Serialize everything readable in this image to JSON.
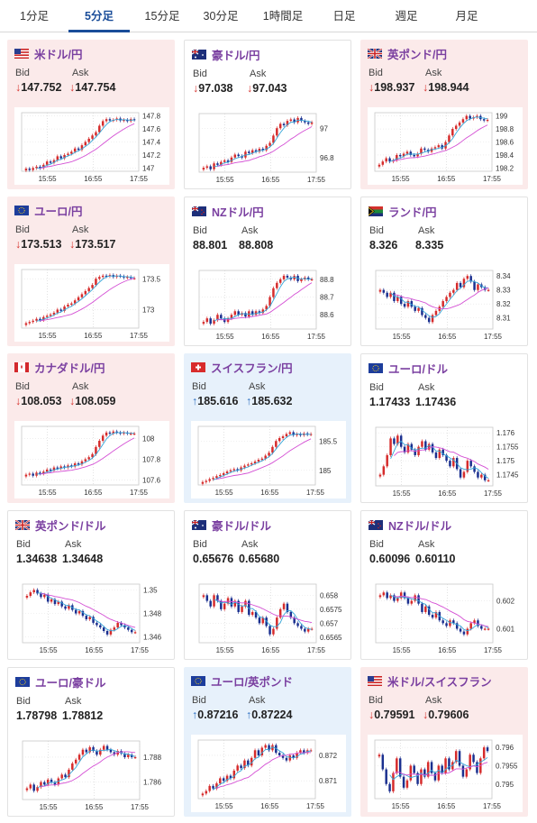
{
  "tabs": [
    {
      "label": "1分足",
      "active": false
    },
    {
      "label": "5分足",
      "active": true
    },
    {
      "label": "15分足",
      "active": false
    },
    {
      "label": "30分足",
      "active": false
    },
    {
      "label": "1時間足",
      "active": false
    },
    {
      "label": "日足",
      "active": false
    },
    {
      "label": "週足",
      "active": false
    },
    {
      "label": "月足",
      "active": false
    }
  ],
  "colors": {
    "up_candle": "#d62b2b",
    "down_candle": "#1a2f8f",
    "ma_short": "#34a6d9",
    "ma_long": "#d44fd4",
    "arrow_down": "#d6332e",
    "arrow_up": "#2b6fc2",
    "pair_name": "#7a3fa0"
  },
  "labels": {
    "bid": "Bid",
    "ask": "Ask"
  },
  "pairs": [
    {
      "name": "米ドル/円",
      "flag": "us-jp-flag",
      "bg": "pink",
      "bid": "147.752",
      "ask": "147.754",
      "direction": "down",
      "chart_data": {
        "type": "candlestick",
        "x_ticks": [
          "15:55",
          "16:55",
          "17:55"
        ],
        "y_ticks": [
          "147.8",
          "147.6",
          "147.4",
          "147.2",
          "147"
        ],
        "ylim": [
          146.95,
          147.85
        ],
        "close": [
          146.99,
          146.97,
          147.0,
          147.02,
          147.0,
          147.05,
          147.1,
          147.08,
          147.12,
          147.18,
          147.15,
          147.2,
          147.22,
          147.25,
          147.3,
          147.28,
          147.35,
          147.4,
          147.45,
          147.5,
          147.55,
          147.65,
          147.72,
          147.75,
          147.73,
          147.74,
          147.76,
          147.73,
          147.74,
          147.72,
          147.75,
          147.74
        ]
      }
    },
    {
      "name": "豪ドル/円",
      "flag": "au-jp-flag",
      "bg": "white",
      "bid": "97.038",
      "ask": "97.043",
      "direction": "down",
      "chart_data": {
        "type": "candlestick",
        "x_ticks": [
          "15:55",
          "16:55",
          "17:55"
        ],
        "y_ticks": [
          "97",
          "96.8"
        ],
        "ylim": [
          96.7,
          97.1
        ],
        "close": [
          96.73,
          96.74,
          96.72,
          96.76,
          96.75,
          96.77,
          96.78,
          96.77,
          96.8,
          96.82,
          96.81,
          96.8,
          96.84,
          96.83,
          96.85,
          96.84,
          96.86,
          96.85,
          96.88,
          96.9,
          96.95,
          97.0,
          97.03,
          97.02,
          97.05,
          97.06,
          97.04,
          97.07,
          97.05,
          97.04,
          97.03,
          97.04
        ]
      }
    },
    {
      "name": "英ポンド/円",
      "flag": "uk-jp-flag",
      "bg": "pink",
      "bid": "198.937",
      "ask": "198.944",
      "direction": "down",
      "chart_data": {
        "type": "candlestick",
        "x_ticks": [
          "15:55",
          "16:55",
          "17:55"
        ],
        "y_ticks": [
          "199",
          "198.8",
          "198.6",
          "198.4",
          "198.2"
        ],
        "ylim": [
          198.15,
          199.05
        ],
        "close": [
          198.25,
          198.3,
          198.35,
          198.3,
          198.32,
          198.4,
          198.38,
          198.42,
          198.45,
          198.4,
          198.38,
          198.42,
          198.5,
          198.48,
          198.45,
          198.5,
          198.52,
          198.55,
          198.5,
          198.6,
          198.7,
          198.8,
          198.85,
          198.9,
          198.95,
          199.0,
          198.96,
          198.98,
          199.0,
          198.95,
          198.93,
          198.94
        ]
      }
    },
    {
      "name": "ユーロ/円",
      "flag": "eu-jp-flag",
      "bg": "pink",
      "bid": "173.513",
      "ask": "173.517",
      "direction": "down",
      "chart_data": {
        "type": "candlestick",
        "x_ticks": [
          "15:55",
          "16:55",
          "17:55"
        ],
        "y_ticks": [
          "173.5",
          "173"
        ],
        "ylim": [
          172.7,
          173.65
        ],
        "close": [
          172.78,
          172.8,
          172.82,
          172.85,
          172.83,
          172.88,
          172.9,
          172.92,
          172.95,
          173.0,
          172.98,
          173.05,
          173.08,
          173.1,
          173.15,
          173.2,
          173.25,
          173.3,
          173.35,
          173.4,
          173.5,
          173.53,
          173.55,
          173.54,
          173.56,
          173.53,
          173.55,
          173.54,
          173.52,
          173.53,
          173.51,
          173.51
        ]
      }
    },
    {
      "name": "NZドル/円",
      "flag": "nz-jp-flag",
      "bg": "white",
      "bid": "88.801",
      "ask": "88.808",
      "direction": "none",
      "chart_data": {
        "type": "candlestick",
        "x_ticks": [
          "15:55",
          "16:55",
          "17:55"
        ],
        "y_ticks": [
          "88.8",
          "88.7",
          "88.6"
        ],
        "ylim": [
          88.52,
          88.85
        ],
        "close": [
          88.56,
          88.58,
          88.55,
          88.57,
          88.6,
          88.58,
          88.56,
          88.58,
          88.6,
          88.62,
          88.6,
          88.61,
          88.59,
          88.62,
          88.6,
          88.62,
          88.61,
          88.63,
          88.65,
          88.7,
          88.75,
          88.78,
          88.8,
          88.82,
          88.81,
          88.8,
          88.82,
          88.79,
          88.8,
          88.81,
          88.8,
          88.8
        ]
      }
    },
    {
      "name": "ランド/円",
      "flag": "za-jp-flag",
      "bg": "white",
      "bid": "8.326",
      "ask": "8.335",
      "direction": "none",
      "chart_data": {
        "type": "candlestick",
        "x_ticks": [
          "15:55",
          "16:55",
          "17:55"
        ],
        "y_ticks": [
          "8.34",
          "8.33",
          "8.32",
          "8.31"
        ],
        "ylim": [
          8.302,
          8.344
        ],
        "close": [
          8.33,
          8.328,
          8.325,
          8.328,
          8.322,
          8.325,
          8.32,
          8.318,
          8.322,
          8.318,
          8.315,
          8.317,
          8.312,
          8.31,
          8.307,
          8.312,
          8.315,
          8.318,
          8.322,
          8.325,
          8.328,
          8.33,
          8.335,
          8.332,
          8.338,
          8.34,
          8.336,
          8.33,
          8.334,
          8.332,
          8.33,
          8.33
        ]
      }
    },
    {
      "name": "カナダドル/円",
      "flag": "ca-jp-flag",
      "bg": "pink",
      "bid": "108.053",
      "ask": "108.059",
      "direction": "down",
      "chart_data": {
        "type": "candlestick",
        "x_ticks": [
          "15:55",
          "16:55",
          "17:55"
        ],
        "y_ticks": [
          "108",
          "107.8",
          "107.6"
        ],
        "ylim": [
          107.55,
          108.12
        ],
        "close": [
          107.65,
          107.66,
          107.64,
          107.67,
          107.66,
          107.68,
          107.7,
          107.69,
          107.72,
          107.71,
          107.73,
          107.72,
          107.74,
          107.73,
          107.76,
          107.75,
          107.78,
          107.8,
          107.82,
          107.85,
          107.92,
          107.98,
          108.03,
          108.06,
          108.05,
          108.07,
          108.06,
          108.05,
          108.06,
          108.05,
          108.05,
          108.05
        ]
      }
    },
    {
      "name": "スイスフラン/円",
      "flag": "ch-jp-flag",
      "bg": "blue",
      "bid": "185.616",
      "ask": "185.632",
      "direction": "up",
      "chart_data": {
        "type": "candlestick",
        "x_ticks": [
          "15:55",
          "16:55",
          "17:55"
        ],
        "y_ticks": [
          "185.5",
          "185"
        ],
        "ylim": [
          184.75,
          185.75
        ],
        "close": [
          184.8,
          184.82,
          184.85,
          184.87,
          184.9,
          184.92,
          184.95,
          184.98,
          185.0,
          185.02,
          185.0,
          185.05,
          185.08,
          185.1,
          185.12,
          185.15,
          185.18,
          185.2,
          185.25,
          185.3,
          185.4,
          185.5,
          185.55,
          185.58,
          185.62,
          185.65,
          185.6,
          185.62,
          185.6,
          185.63,
          185.61,
          185.62
        ]
      }
    },
    {
      "name": "ユーロ/ドル",
      "flag": "eu-us-flag",
      "bg": "white",
      "bid": "1.17433",
      "ask": "1.17436",
      "direction": "none",
      "chart_data": {
        "type": "candlestick",
        "x_ticks": [
          "15:55",
          "16:55",
          "17:55"
        ],
        "y_ticks": [
          "1.176",
          "1.1755",
          "1.175",
          "1.1745"
        ],
        "ylim": [
          1.1741,
          1.1762
        ],
        "close": [
          1.1745,
          1.1748,
          1.1752,
          1.1758,
          1.1756,
          1.1759,
          1.1755,
          1.1753,
          1.1756,
          1.1754,
          1.1752,
          1.1755,
          1.1757,
          1.1754,
          1.1756,
          1.1753,
          1.1751,
          1.1754,
          1.1752,
          1.175,
          1.1748,
          1.1751,
          1.1747,
          1.1744,
          1.1746,
          1.175,
          1.1748,
          1.1746,
          1.1744,
          1.1745,
          1.1743,
          1.1743
        ]
      }
    },
    {
      "name": "英ポンド/ドル",
      "flag": "uk-us-flag",
      "bg": "white",
      "bid": "1.34638",
      "ask": "1.34648",
      "direction": "none",
      "chart_data": {
        "type": "candlestick",
        "x_ticks": [
          "15:55",
          "16:55",
          "17:55"
        ],
        "y_ticks": [
          "1.35",
          "1.348",
          "1.346"
        ],
        "ylim": [
          1.3455,
          1.3505
        ],
        "close": [
          1.3495,
          1.3498,
          1.35,
          1.3497,
          1.3494,
          1.3496,
          1.349,
          1.3492,
          1.3488,
          1.349,
          1.3486,
          1.3484,
          1.3487,
          1.3483,
          1.348,
          1.3482,
          1.3478,
          1.3475,
          1.3477,
          1.3472,
          1.347,
          1.3468,
          1.3465,
          1.3462,
          1.3466,
          1.3468,
          1.3472,
          1.347,
          1.3468,
          1.3466,
          1.3464,
          1.3464
        ]
      }
    },
    {
      "name": "豪ドル/ドル",
      "flag": "au-us-flag",
      "bg": "white",
      "bid": "0.65676",
      "ask": "0.65680",
      "direction": "none",
      "chart_data": {
        "type": "candlestick",
        "x_ticks": [
          "15:55",
          "16:55",
          "17:55"
        ],
        "y_ticks": [
          "0.658",
          "0.6575",
          "0.657",
          "0.6565"
        ],
        "ylim": [
          0.6563,
          0.6584
        ],
        "close": [
          0.658,
          0.6578,
          0.6576,
          0.658,
          0.6578,
          0.6575,
          0.6577,
          0.6579,
          0.6576,
          0.6578,
          0.6574,
          0.6576,
          0.6578,
          0.6573,
          0.6574,
          0.6572,
          0.657,
          0.6572,
          0.6569,
          0.6566,
          0.6568,
          0.6572,
          0.6575,
          0.6577,
          0.6574,
          0.6572,
          0.657,
          0.6569,
          0.6568,
          0.6567,
          0.6568,
          0.6568
        ]
      }
    },
    {
      "name": "NZドル/ドル",
      "flag": "nz-us-flag",
      "bg": "white",
      "bid": "0.60096",
      "ask": "0.60110",
      "direction": "none",
      "chart_data": {
        "type": "candlestick",
        "x_ticks": [
          "15:55",
          "16:55",
          "17:55"
        ],
        "y_ticks": [
          "0.602",
          "0.601"
        ],
        "ylim": [
          0.6005,
          0.6026
        ],
        "close": [
          0.6022,
          0.6023,
          0.6021,
          0.6022,
          0.602,
          0.6021,
          0.6023,
          0.6021,
          0.6019,
          0.602,
          0.6022,
          0.6019,
          0.6016,
          0.6018,
          0.6015,
          0.6014,
          0.6016,
          0.6013,
          0.6012,
          0.6011,
          0.6013,
          0.6012,
          0.601,
          0.6009,
          0.6008,
          0.601,
          0.6012,
          0.6013,
          0.6011,
          0.601,
          0.601,
          0.601
        ]
      }
    },
    {
      "name": "ユーロ/豪ドル",
      "flag": "eu-au-flag",
      "bg": "white",
      "bid": "1.78798",
      "ask": "1.78812",
      "direction": "none",
      "chart_data": {
        "type": "candlestick",
        "x_ticks": [
          "15:55",
          "16:55",
          "17:55"
        ],
        "y_ticks": [
          "1.788",
          "1.786"
        ],
        "ylim": [
          1.7846,
          1.7893
        ],
        "close": [
          1.7855,
          1.7858,
          1.7853,
          1.7856,
          1.786,
          1.7858,
          1.7862,
          1.786,
          1.7858,
          1.7863,
          1.7866,
          1.7864,
          1.787,
          1.7875,
          1.7878,
          1.7882,
          1.7886,
          1.7884,
          1.7888,
          1.7885,
          1.7882,
          1.7886,
          1.7889,
          1.7886,
          1.7884,
          1.7882,
          1.7885,
          1.7883,
          1.788,
          1.7882,
          1.788,
          1.788
        ]
      }
    },
    {
      "name": "ユーロ/英ポンド",
      "flag": "eu-uk-flag",
      "bg": "blue",
      "bid": "0.87216",
      "ask": "0.87224",
      "direction": "up",
      "chart_data": {
        "type": "candlestick",
        "x_ticks": [
          "15:55",
          "16:55",
          "17:55"
        ],
        "y_ticks": [
          "0.872",
          "0.871"
        ],
        "ylim": [
          0.8703,
          0.8726
        ],
        "close": [
          0.8705,
          0.8706,
          0.8708,
          0.8707,
          0.8709,
          0.8711,
          0.871,
          0.8712,
          0.8711,
          0.8714,
          0.8716,
          0.8715,
          0.8718,
          0.8716,
          0.8719,
          0.8722,
          0.872,
          0.8723,
          0.8724,
          0.8722,
          0.8724,
          0.8721,
          0.872,
          0.8719,
          0.8718,
          0.872,
          0.8719,
          0.8721,
          0.8722,
          0.8721,
          0.8722,
          0.8722
        ]
      }
    },
    {
      "name": "米ドル/スイスフラン",
      "flag": "us-ch-flag",
      "bg": "pink",
      "bid": "0.79591",
      "ask": "0.79606",
      "direction": "down",
      "chart_data": {
        "type": "candlestick",
        "x_ticks": [
          "15:55",
          "16:55",
          "17:55"
        ],
        "y_ticks": [
          "0.796",
          "0.7955",
          "0.795"
        ],
        "ylim": [
          0.7946,
          0.7962
        ],
        "close": [
          0.7958,
          0.7954,
          0.795,
          0.7948,
          0.7953,
          0.7957,
          0.7952,
          0.7949,
          0.7951,
          0.7955,
          0.7953,
          0.795,
          0.7954,
          0.7952,
          0.7956,
          0.7953,
          0.7951,
          0.7955,
          0.7953,
          0.7957,
          0.7954,
          0.7956,
          0.7959,
          0.7955,
          0.7952,
          0.7954,
          0.7958,
          0.7956,
          0.7953,
          0.7957,
          0.796,
          0.7959
        ]
      }
    }
  ]
}
